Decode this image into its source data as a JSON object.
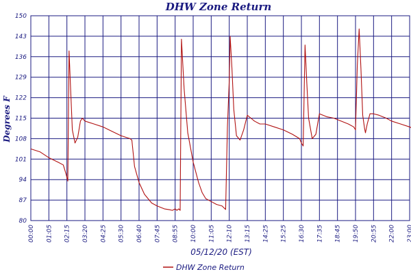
{
  "chart_data": {
    "type": "line",
    "title": "DHW Zone Return",
    "xlabel": "05/12/20 (EST)",
    "ylabel": "Degrees F",
    "ylim": [
      80,
      150
    ],
    "y_ticks": [
      "80",
      "87",
      "94",
      "101",
      "108",
      "115",
      "122",
      "129",
      "136",
      "143",
      "150"
    ],
    "x_ticks": [
      "00:00",
      "01:05",
      "02:15",
      "03:20",
      "04:25",
      "05:30",
      "06:40",
      "07:45",
      "08:55",
      "10:00",
      "11:05",
      "12:10",
      "13:15",
      "14:25",
      "15:25",
      "16:30",
      "17:35",
      "18:45",
      "19:50",
      "20:55",
      "22:00",
      "23:00"
    ],
    "grid": true,
    "legend_position": "bottom-center",
    "series": [
      {
        "name": "DHW Zone Return",
        "color": "#b01010",
        "x": [
          0.0,
          0.5,
          1.0,
          1.5,
          1.8,
          1.95,
          2.05,
          2.12,
          2.2,
          2.3,
          2.45,
          2.6,
          2.75,
          2.85,
          3.0,
          3.5,
          4.0,
          4.5,
          5.0,
          5.5,
          5.6,
          5.75,
          6.0,
          6.3,
          6.7,
          7.0,
          7.4,
          7.7,
          7.85,
          8.0,
          8.1,
          8.2,
          8.28,
          8.35,
          8.5,
          8.7,
          9.0,
          9.3,
          9.5,
          9.7,
          10.0,
          10.3,
          10.6,
          10.8,
          10.9,
          11.0,
          11.05,
          11.15,
          11.25,
          11.4,
          11.6,
          11.8,
          12.0,
          12.2,
          12.4,
          12.7,
          13.0,
          13.5,
          14.0,
          14.5,
          14.9,
          15.0,
          15.1,
          15.2,
          15.3,
          15.4,
          15.6,
          15.8,
          16.0,
          16.2,
          16.4,
          16.8,
          17.2,
          17.6,
          17.9,
          18.0,
          18.1,
          18.2,
          18.3,
          18.4,
          18.5,
          18.55,
          18.65,
          18.8,
          19.0,
          19.3,
          19.7,
          20.0,
          20.5,
          21.0,
          21.5,
          21.8,
          22.0,
          22.5,
          23.0
        ],
        "y": [
          104.5,
          103.5,
          101.5,
          100.0,
          99.0,
          96.0,
          93.5,
          138.0,
          126.0,
          111.0,
          106.5,
          108.5,
          114.0,
          115.0,
          114.0,
          113.0,
          112.0,
          110.5,
          109.0,
          108.0,
          107.5,
          98.5,
          93.0,
          89.0,
          86.0,
          85.0,
          84.0,
          83.7,
          83.5,
          84.0,
          83.5,
          84.0,
          83.5,
          142.0,
          125.0,
          110.0,
          100.0,
          93.0,
          89.5,
          87.5,
          86.5,
          85.5,
          85.0,
          83.8,
          112.0,
          128.0,
          143.0,
          132.0,
          118.0,
          109.0,
          107.5,
          111.0,
          116.0,
          115.0,
          114.0,
          113.0,
          113.0,
          112.0,
          111.0,
          109.5,
          108.0,
          106.5,
          105.5,
          140.0,
          127.0,
          115.0,
          108.0,
          109.5,
          116.5,
          116.0,
          115.5,
          115.0,
          114.0,
          113.0,
          112.0,
          111.0,
          133.0,
          145.5,
          132.0,
          116.0,
          111.5,
          110.0,
          113.0,
          116.5,
          116.5,
          116.0,
          115.0,
          114.0,
          113.0,
          112.0,
          110.5,
          110.0,
          108.0,
          107.0,
          105.5
        ]
      }
    ]
  }
}
